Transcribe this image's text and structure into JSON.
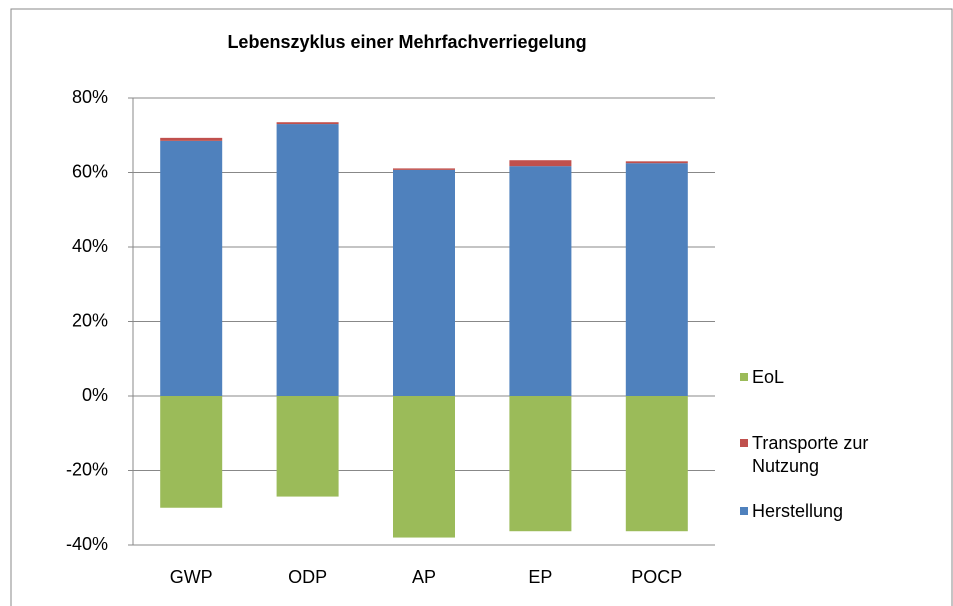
{
  "chart_data": {
    "type": "stacked-bar",
    "title": "Lebenszyklus einer Mehrfachverriegelung",
    "categories": [
      "GWP",
      "ODP",
      "AP",
      "EP",
      "POCP"
    ],
    "series": [
      {
        "name": "Herstellung",
        "color": "#4f81bd",
        "values": [
          68.5,
          73,
          60.7,
          61.7,
          62.5
        ]
      },
      {
        "name": "Transporte zur Nutzung",
        "color": "#c0504d",
        "values": [
          0.8,
          0.5,
          0.4,
          1.6,
          0.5
        ]
      },
      {
        "name": "EoL",
        "color": "#9bbb59",
        "values": [
          -30,
          -27,
          -38,
          -36.3,
          -36.3
        ]
      }
    ],
    "ylim": [
      -40,
      80
    ],
    "yticks": [
      {
        "value": -40,
        "label": "-40%"
      },
      {
        "value": -20,
        "label": "-20%"
      },
      {
        "value": 0,
        "label": "0%"
      },
      {
        "value": 20,
        "label": "20%"
      },
      {
        "value": 40,
        "label": "40%"
      },
      {
        "value": 60,
        "label": "60%"
      },
      {
        "value": 80,
        "label": "80%"
      }
    ],
    "grid": true
  }
}
